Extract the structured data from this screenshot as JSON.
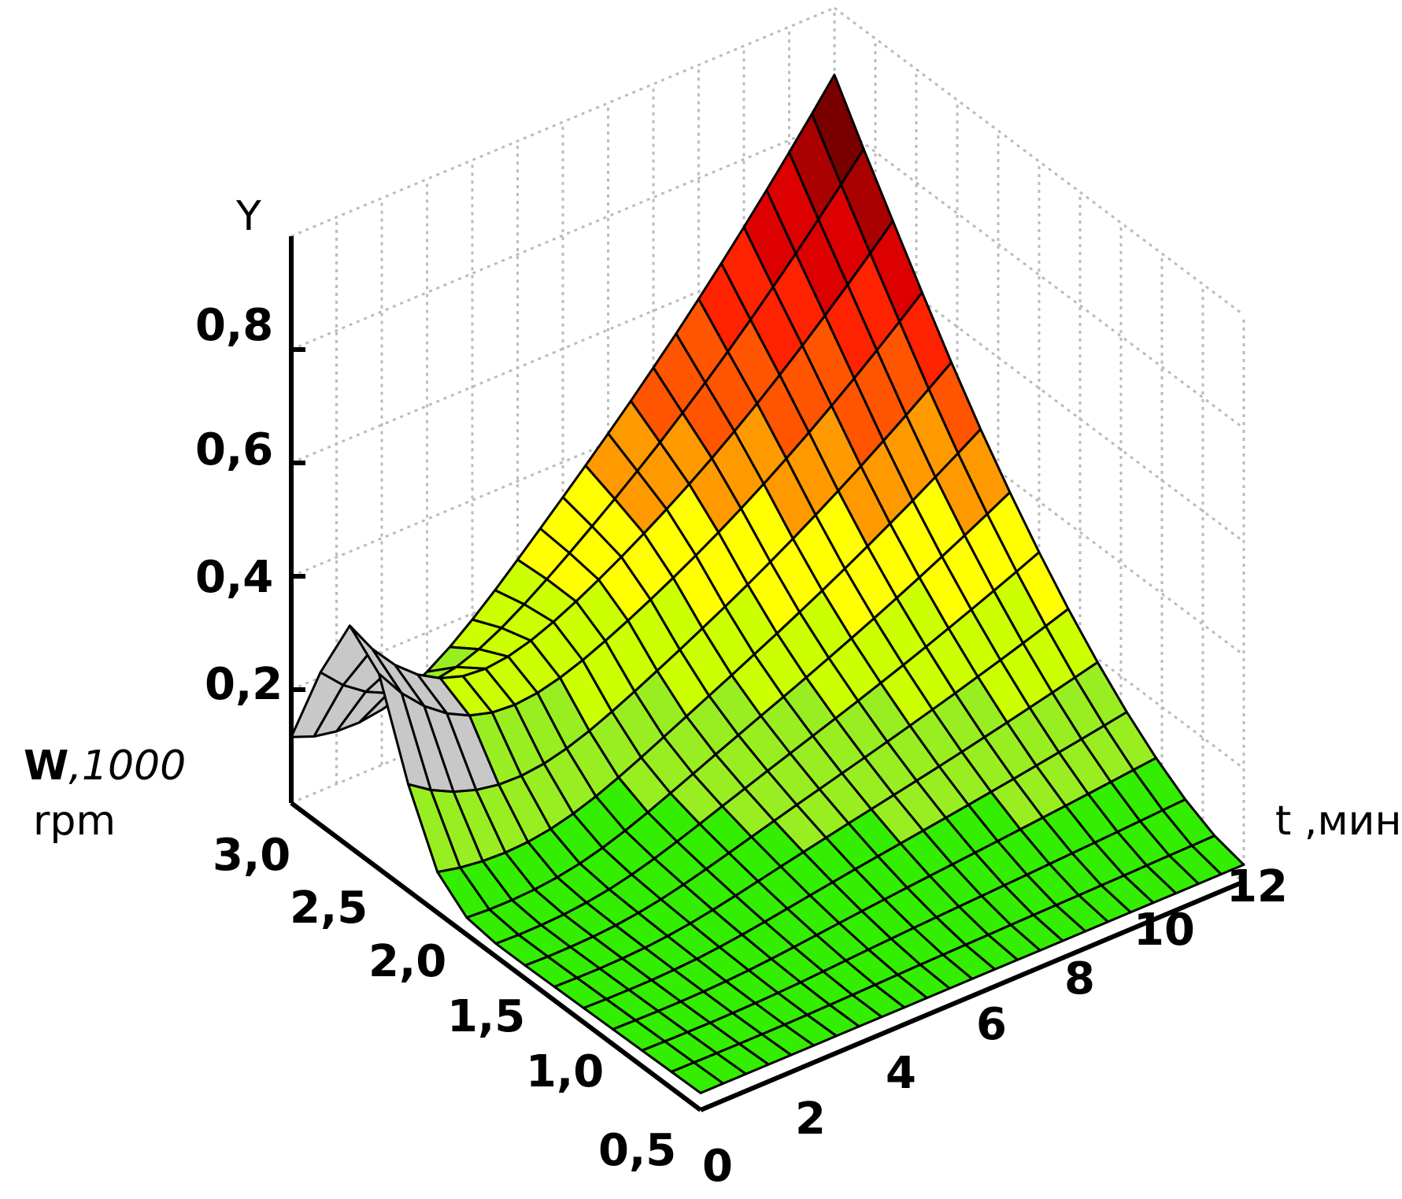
{
  "chart_data": {
    "type": "surface3d",
    "x_axis": {
      "label_bold": "W",
      "label_rest": ",1000",
      "label_line2": "rpm",
      "range": [
        0.5,
        3.0
      ],
      "ticks": [
        "0,5",
        "1,0",
        "1,5",
        "2,0",
        "2,5",
        "3,0"
      ]
    },
    "t_axis": {
      "label": "t ,мин",
      "range": [
        0,
        12
      ],
      "ticks": [
        "0",
        "2",
        "4",
        "6",
        "8",
        "10",
        "12"
      ]
    },
    "y_axis": {
      "label": "Y",
      "range": [
        0,
        1.0
      ],
      "ticks": [
        "0,2",
        "0,4",
        "0,6",
        "0,8"
      ]
    },
    "grid": true,
    "surface_samples": {
      "description_w": [
        3.0,
        2.5,
        2.0,
        1.5,
        1.0,
        0.5
      ],
      "edge_w3": {
        "t": [
          0,
          12
        ],
        "Y": [
          0.03,
          0.88
        ]
      },
      "edge_w05": {
        "t": [
          0,
          12
        ],
        "Y": [
          0.0,
          0.02
        ]
      },
      "ridge_peak_t0": 0.38
    },
    "colormap": [
      "#33ee00",
      "#99ee22",
      "#ccff00",
      "#ffff00",
      "#ff9900",
      "#ff5500",
      "#ff2200",
      "#dd0000",
      "#aa0000",
      "#7a0000"
    ],
    "back_color": "#c8c8c8"
  }
}
